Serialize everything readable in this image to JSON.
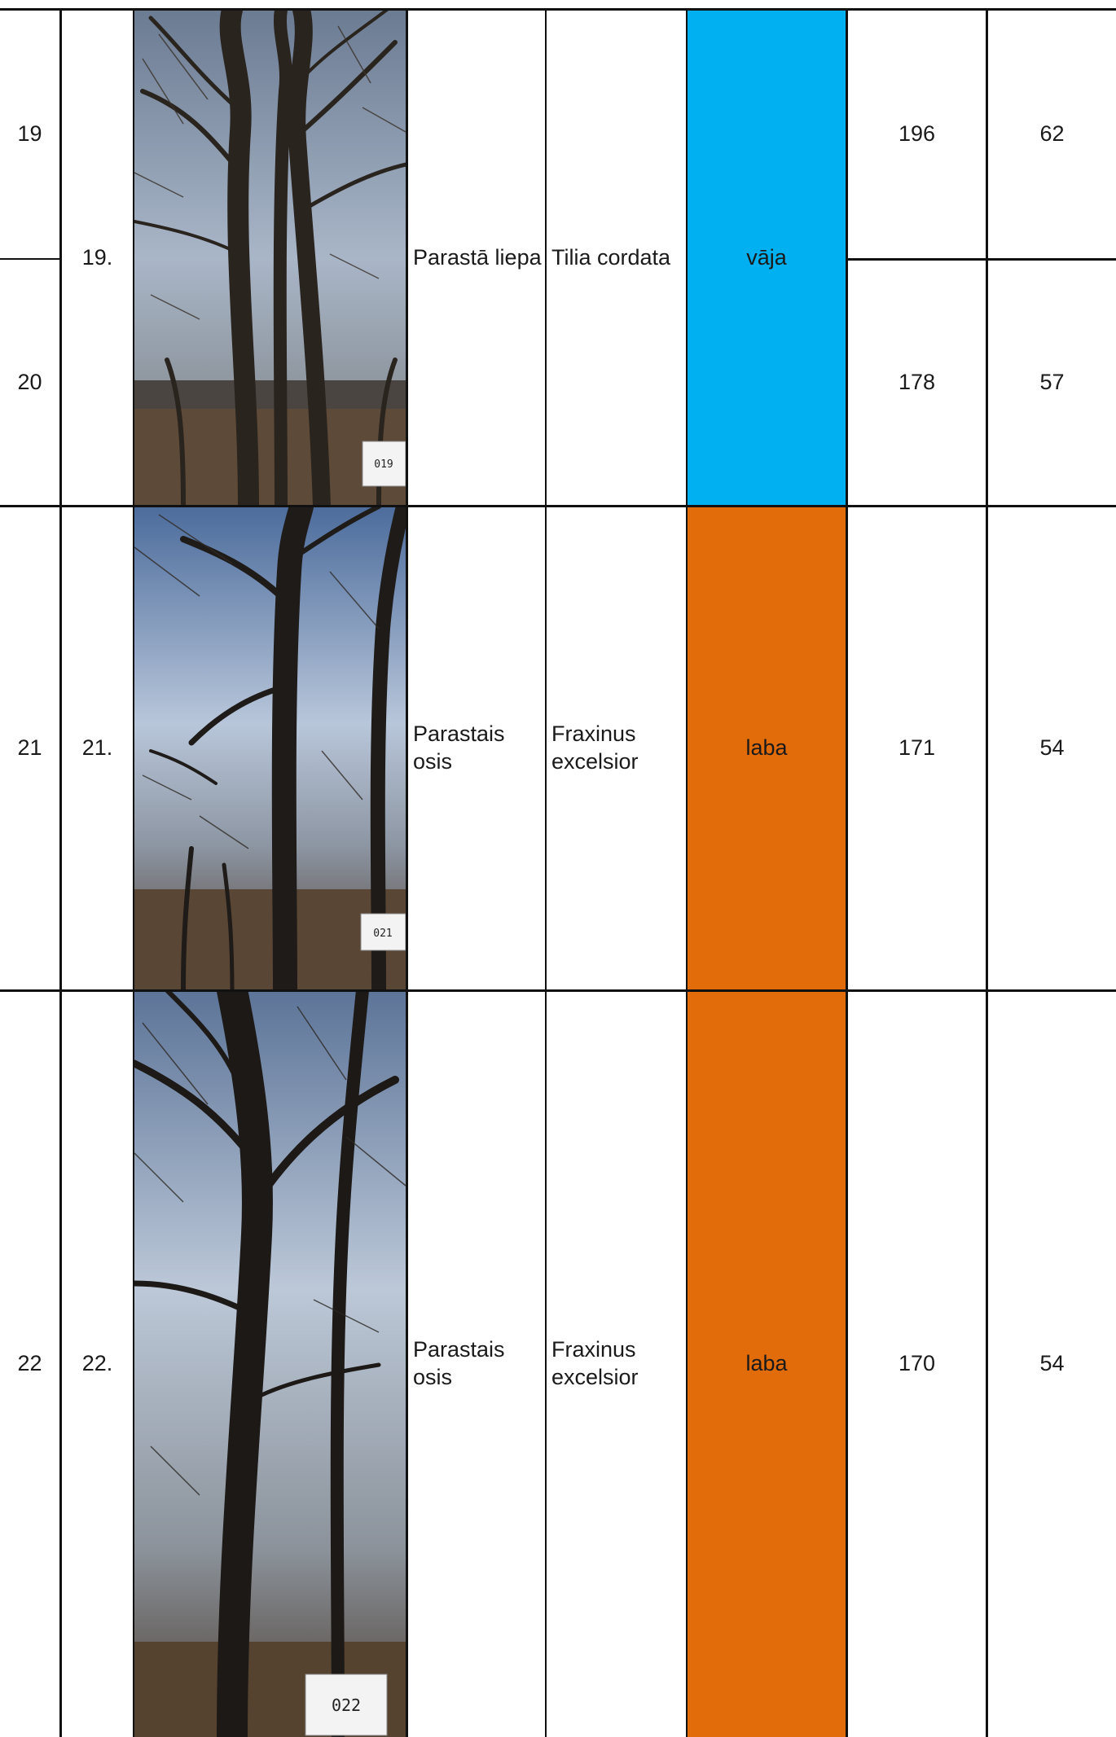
{
  "colors": {
    "vaja": "#00b0f0",
    "laba": "#e36c0a",
    "border": "#111111"
  },
  "rows": [
    {
      "id": "19",
      "val1": "196",
      "val2": "62"
    },
    {
      "id": "20",
      "val1": "178",
      "val2": "57"
    },
    {
      "id": "21",
      "val1": "171",
      "val2": "54"
    },
    {
      "id": "22",
      "val1": "170",
      "val2": "54"
    }
  ],
  "groups": [
    {
      "nr": "19.",
      "name_lv": "Parastā liepa",
      "name_lat": "Tilia cordata",
      "condition": "vāja",
      "tag": "019"
    },
    {
      "nr": "21.",
      "name_lv": "Parastais osis",
      "name_lat": "Fraxinus excelsior",
      "condition": "laba",
      "tag": "021"
    },
    {
      "nr": "22.",
      "name_lv": "Parastais osis",
      "name_lat": "Fraxinus excelsior",
      "condition": "laba",
      "tag": "022"
    }
  ]
}
